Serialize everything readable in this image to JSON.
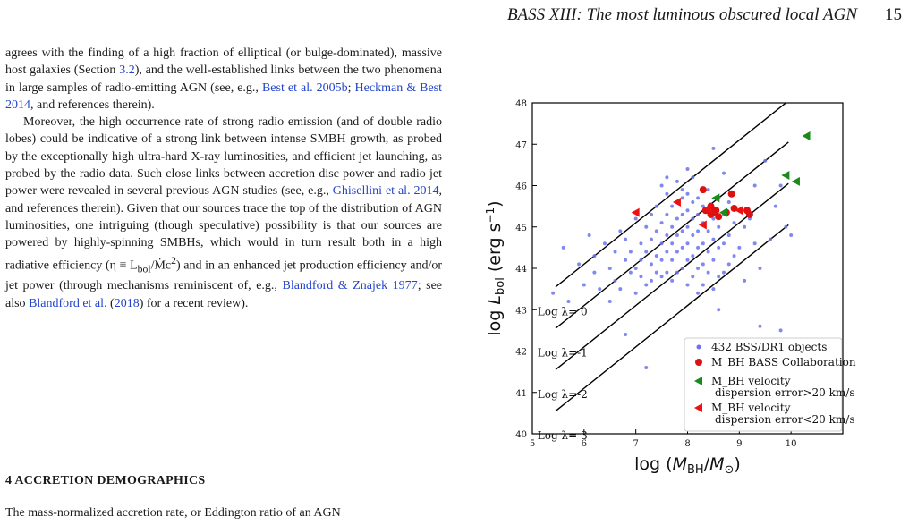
{
  "header": {
    "title": "BASS XIII: The most luminous obscured local AGN",
    "page": "15"
  },
  "body": {
    "p1": [
      {
        "t": "agrees with the finding of a high fraction of elliptical (or bulge-dominated), massive host galaxies (Section "
      },
      {
        "t": "3.2",
        "ref": true
      },
      {
        "t": "), and the well-established links between the two phenomena in large samples of radio-emitting AGN (see, e.g., "
      },
      {
        "t": "Best et al. 2005b",
        "ref": true
      },
      {
        "t": "; "
      },
      {
        "t": "Heckman & Best 2014",
        "ref": true
      },
      {
        "t": ", and references therein)."
      }
    ],
    "p2": [
      {
        "t": "Moreover, the high occurrence rate of strong radio emission (and of double radio lobes) could be indicative of a strong link between intense SMBH growth, as probed by the exceptionally high ultra-hard X-ray luminosities, and efficient jet launching, as probed by the radio data. Such close links between accretion disc power and radio jet power were revealed in several previous AGN studies (see, e.g., "
      },
      {
        "t": "Ghisellini et al. 2014",
        "ref": true
      },
      {
        "t": ", and references therein). Given that our sources trace the top of the distribution of AGN luminosities, one intriguing (though speculative) possibility is that our sources are powered by highly-spinning SMBHs, which would in turn result both in a high radiative efficiency (η ≡ L"
      },
      {
        "t": "bol",
        "sub": true
      },
      {
        "t": "/Ṁc"
      },
      {
        "t": "2",
        "sup": true
      },
      {
        "t": ") and in an enhanced jet production efficiency and/or jet power (through mechanisms reminiscent of, e.g., "
      },
      {
        "t": "Blandford & Znajek 1977",
        "ref": true
      },
      {
        "t": "; see also "
      },
      {
        "t": "Blandford et al.",
        "ref": true
      },
      {
        "t": " ("
      },
      {
        "t": "2018",
        "ref": true
      },
      {
        "t": ") for a recent review)."
      }
    ],
    "section_heading": "4   ACCRETION DEMOGRAPHICS",
    "section_text": "The mass-normalized accretion rate, or Eddington ratio of an AGN"
  },
  "chart_data": {
    "type": "scatter",
    "xlabel": "log (M_BH/M_⊙)",
    "ylabel": "log L_bol (erg s⁻¹)",
    "xlim": [
      5,
      11
    ],
    "ylim": [
      40,
      48
    ],
    "xticks": [
      5,
      6,
      7,
      8,
      9,
      10
    ],
    "yticks": [
      40,
      41,
      42,
      43,
      44,
      45,
      46,
      47,
      48
    ],
    "eddington_lines": [
      {
        "label": "Log λ= 0",
        "log_lambda": 0
      },
      {
        "label": "Log λ=-1",
        "log_lambda": -1
      },
      {
        "label": "Log λ=-2",
        "log_lambda": -2
      },
      {
        "label": "Log λ=-3",
        "log_lambda": -3
      }
    ],
    "series": [
      {
        "name": "432 BSS/DR1 objects",
        "color": "#6b74ee",
        "marker": "dot",
        "x": [
          5.4,
          5.6,
          5.7,
          5.9,
          6.0,
          6.1,
          6.2,
          6.2,
          6.3,
          6.4,
          6.5,
          6.5,
          6.6,
          6.6,
          6.7,
          6.7,
          6.8,
          6.8,
          6.9,
          6.9,
          7.0,
          7.0,
          7.0,
          7.1,
          7.1,
          7.1,
          7.2,
          7.2,
          7.2,
          7.3,
          7.3,
          7.3,
          7.3,
          7.4,
          7.4,
          7.4,
          7.4,
          7.5,
          7.5,
          7.5,
          7.5,
          7.5,
          7.6,
          7.6,
          7.6,
          7.6,
          7.6,
          7.7,
          7.7,
          7.7,
          7.7,
          7.7,
          7.8,
          7.8,
          7.8,
          7.8,
          7.8,
          7.8,
          7.9,
          7.9,
          7.9,
          7.9,
          7.9,
          7.9,
          8.0,
          8.0,
          8.0,
          8.0,
          8.0,
          8.0,
          8.0,
          8.1,
          8.1,
          8.1,
          8.1,
          8.1,
          8.1,
          8.2,
          8.2,
          8.2,
          8.2,
          8.2,
          8.2,
          8.3,
          8.3,
          8.3,
          8.3,
          8.3,
          8.4,
          8.4,
          8.4,
          8.4,
          8.4,
          8.5,
          8.5,
          8.5,
          8.5,
          8.6,
          8.6,
          8.6,
          8.6,
          8.7,
          8.7,
          8.7,
          8.8,
          8.8,
          8.8,
          8.9,
          8.9,
          9.0,
          9.0,
          9.1,
          9.1,
          9.2,
          9.3,
          9.3,
          9.4,
          9.5,
          9.6,
          9.7,
          9.8,
          9.9,
          10.0,
          8.5,
          8.7,
          7.6,
          7.2,
          6.8,
          8.0,
          8.6,
          9.4,
          9.8
        ],
        "y": [
          43.4,
          44.5,
          43.2,
          44.1,
          43.6,
          44.8,
          43.9,
          44.3,
          43.5,
          44.6,
          44.0,
          43.2,
          44.4,
          43.7,
          44.9,
          43.5,
          44.2,
          44.7,
          43.9,
          44.4,
          45.2,
          44.0,
          43.4,
          44.6,
          43.8,
          44.2,
          45.0,
          44.4,
          43.6,
          44.7,
          44.1,
          43.7,
          45.3,
          44.9,
          44.3,
          43.9,
          45.5,
          45.1,
          44.6,
          44.2,
          43.8,
          46.0,
          45.3,
          44.8,
          44.4,
          43.9,
          45.8,
          45.5,
          45.0,
          44.6,
          44.2,
          43.7,
          45.6,
          45.2,
          44.8,
          44.4,
          43.9,
          46.1,
          45.7,
          45.3,
          44.9,
          44.5,
          44.0,
          45.9,
          45.8,
          45.4,
          45.0,
          44.6,
          44.2,
          43.6,
          46.4,
          45.6,
          45.2,
          44.8,
          44.3,
          43.8,
          46.2,
          45.7,
          45.3,
          44.9,
          44.5,
          44.0,
          43.4,
          45.5,
          45.1,
          44.6,
          44.1,
          43.6,
          45.9,
          45.4,
          44.9,
          44.4,
          43.9,
          45.2,
          44.7,
          44.2,
          43.5,
          45.7,
          45.0,
          44.5,
          43.8,
          45.3,
          44.6,
          43.9,
          45.6,
          44.8,
          44.1,
          45.1,
          44.3,
          45.4,
          44.5,
          45.0,
          43.7,
          45.2,
          44.6,
          46.0,
          44.0,
          46.6,
          44.7,
          45.5,
          46.0,
          45.0,
          44.8,
          46.9,
          46.3,
          46.2,
          41.6,
          42.4,
          42.2,
          43.0,
          42.6,
          42.5
        ],
        "legend": "432 BSS/DR1 objects"
      },
      {
        "name": "M_BH BASS Collaboration",
        "color": "#dd1111",
        "marker": "circle",
        "x": [
          8.3,
          8.45,
          8.5,
          8.55,
          8.45,
          8.6,
          8.75,
          8.85,
          8.9,
          9.15,
          9.2,
          8.35
        ],
        "y": [
          45.9,
          45.5,
          45.35,
          45.4,
          45.3,
          45.25,
          45.35,
          45.8,
          45.45,
          45.4,
          45.3,
          45.4
        ],
        "legend": "M_BH BASS Collaboration"
      },
      {
        "name": "M_BH velocity dispersion error>20 km/s",
        "color": "#1a8a1a",
        "marker": "tri-left",
        "x": [
          10.3,
          9.9,
          10.1,
          8.55,
          8.7
        ],
        "y": [
          47.2,
          46.25,
          46.1,
          45.7,
          45.35
        ],
        "legend": [
          "M_BH velocity",
          "dispersion error>20 km/s"
        ]
      },
      {
        "name": "M_BH velocity dispersion error<20 km/s",
        "color": "#ee1111",
        "marker": "tri-left",
        "x": [
          7.0,
          7.8,
          8.3,
          8.4,
          9.0
        ],
        "y": [
          45.35,
          45.6,
          45.05,
          45.45,
          45.4
        ],
        "legend": [
          "M_BH velocity",
          "dispersion error<20 km/s"
        ]
      }
    ],
    "legend_position": "bottom-right"
  }
}
